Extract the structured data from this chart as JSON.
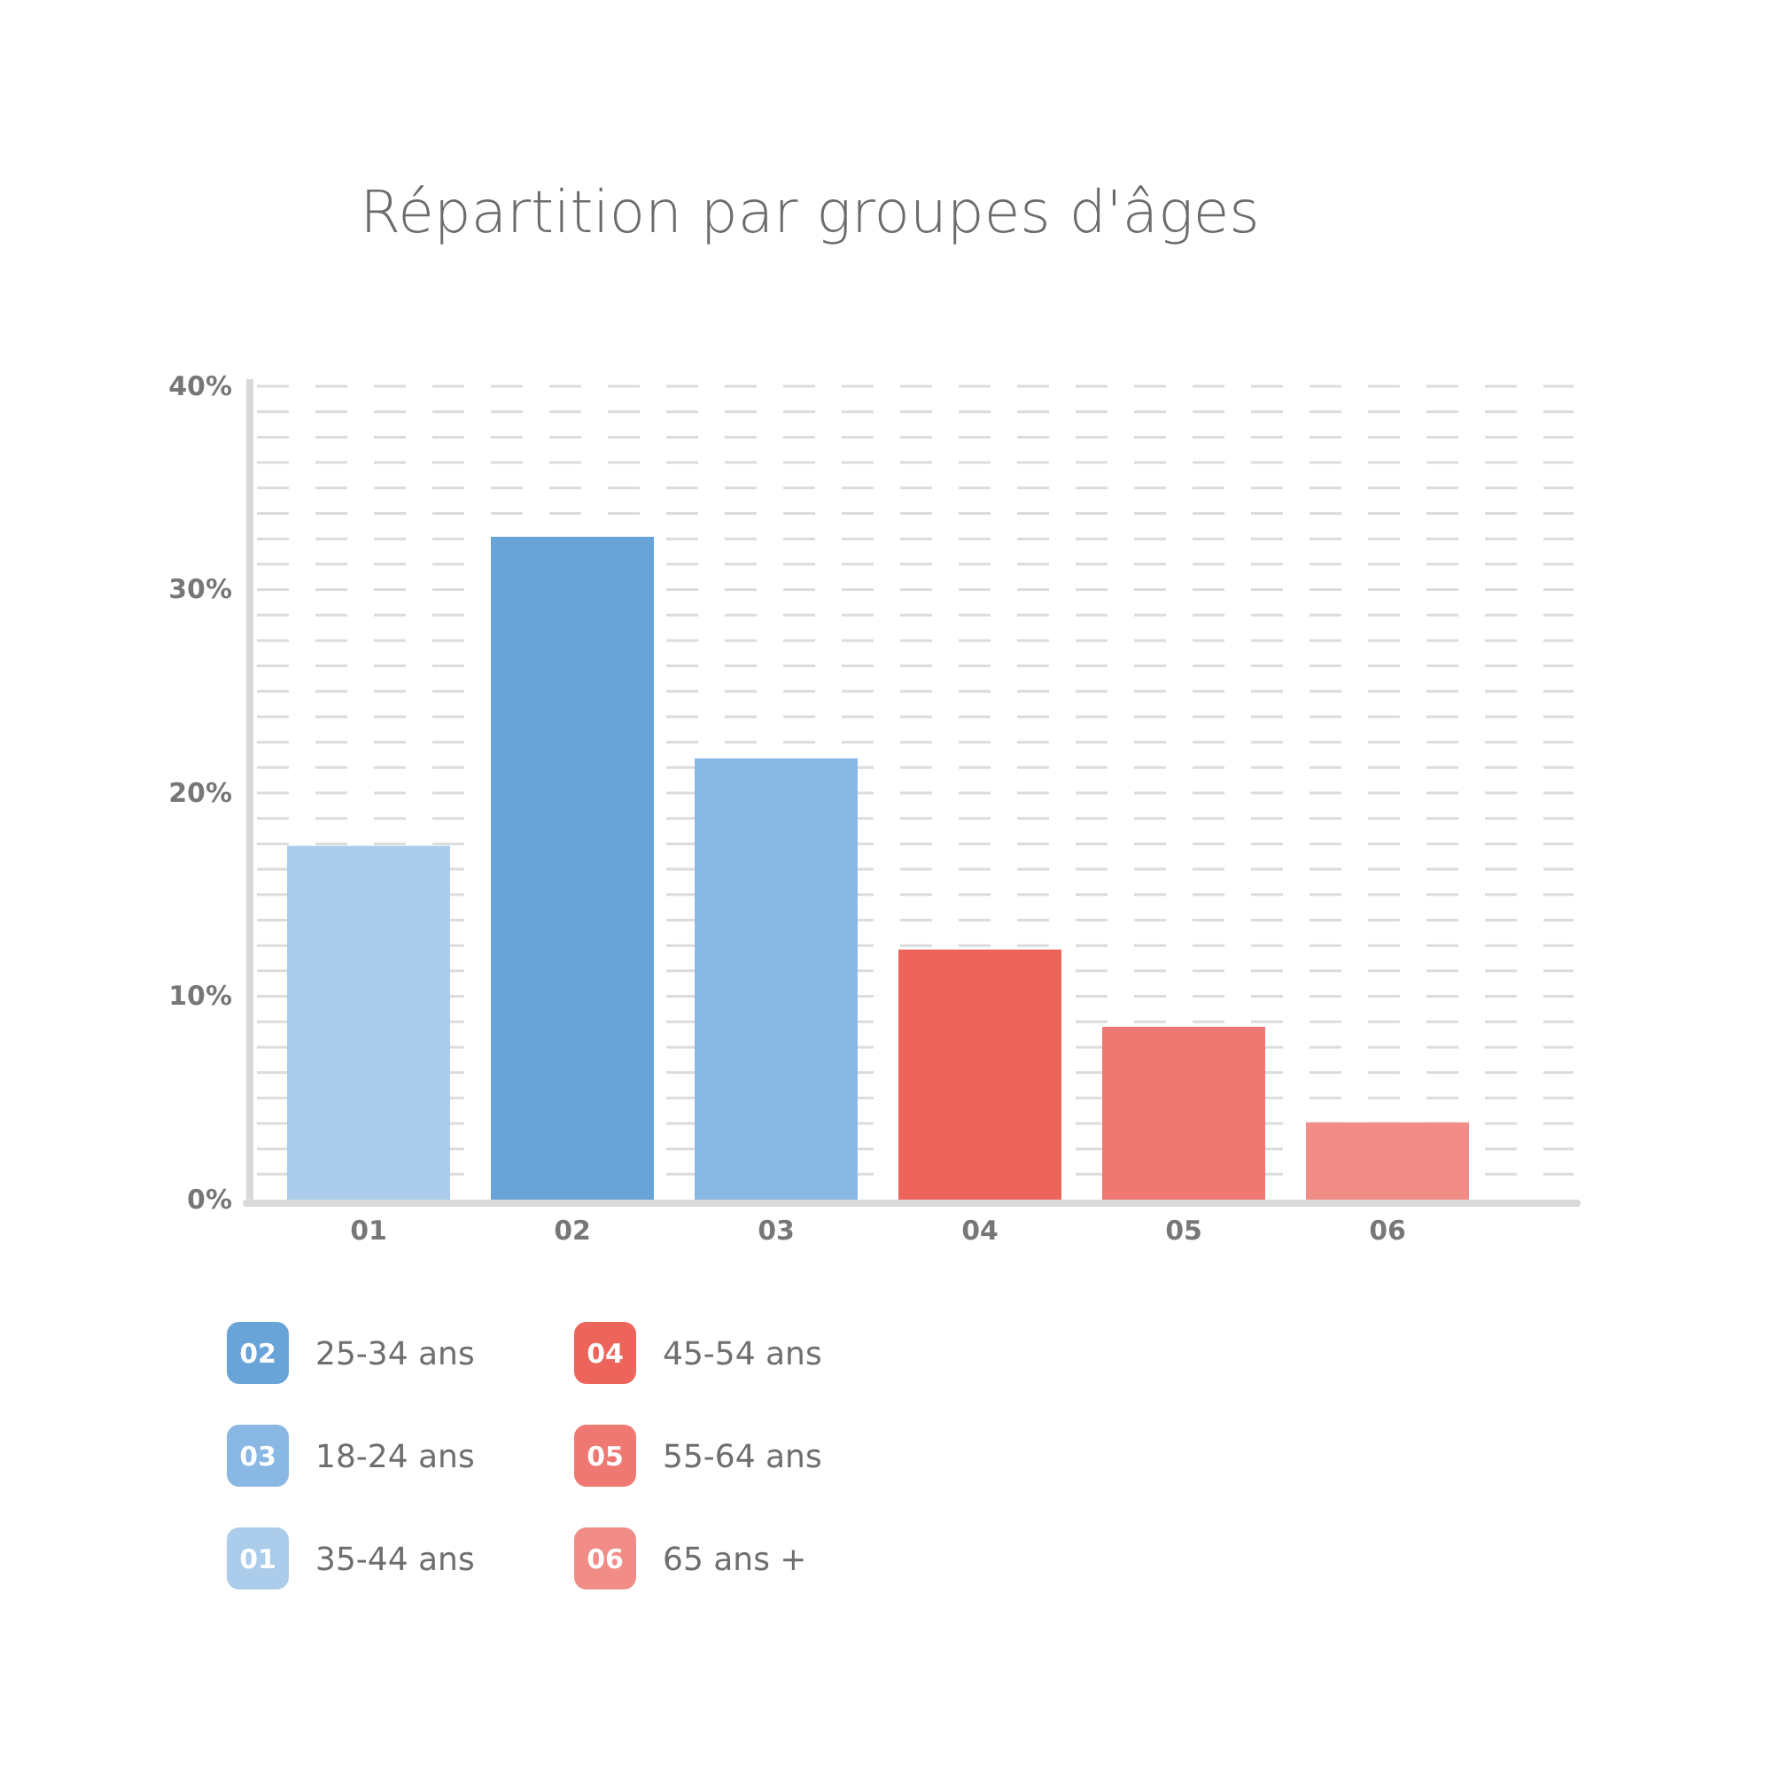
{
  "chart_data": {
    "type": "bar",
    "title": "Répartition par groupes d'âges",
    "categories": [
      "01",
      "02",
      "03",
      "04",
      "05",
      "06"
    ],
    "series": [
      {
        "name": "25-34 ans",
        "color": "#68a4d7",
        "values": [
          null,
          32.6,
          null,
          null,
          null,
          null
        ]
      },
      {
        "name": "18-24 ans",
        "color": "#88b8e3",
        "values": [
          null,
          null,
          21.7,
          null,
          null,
          null
        ]
      },
      {
        "name": "35-44 ans",
        "color": "#abcdeb",
        "values": [
          17.4,
          null,
          null,
          null,
          null,
          null
        ]
      },
      {
        "name": "45-54 ans",
        "color": "#ec645a",
        "values": [
          null,
          null,
          null,
          12.3,
          null,
          null
        ]
      },
      {
        "name": "55-64 ans",
        "color": "#ef7872",
        "values": [
          null,
          null,
          null,
          null,
          8.5,
          null
        ]
      },
      {
        "name": "65 ans +",
        "color": "#f18c86",
        "values": [
          null,
          null,
          null,
          null,
          null,
          3.8
        ]
      }
    ],
    "ylim": [
      0,
      40
    ],
    "yticks": [
      {
        "value": 0,
        "label": "0%"
      },
      {
        "value": 1.25,
        "label": null
      },
      {
        "value": 2.5,
        "label": null
      },
      {
        "value": 3.75,
        "label": null
      },
      {
        "value": 5,
        "label": null
      },
      {
        "value": 6.25,
        "label": null
      },
      {
        "value": 7.5,
        "label": null
      },
      {
        "value": 8.75,
        "label": null
      },
      {
        "value": 10,
        "label": "10%"
      },
      {
        "value": 11.25,
        "label": null
      },
      {
        "value": 12.5,
        "label": null
      },
      {
        "value": 13.75,
        "label": null
      },
      {
        "value": 15,
        "label": null
      },
      {
        "value": 16.25,
        "label": null
      },
      {
        "value": 17.5,
        "label": null
      },
      {
        "value": 18.75,
        "label": null
      },
      {
        "value": 20,
        "label": "20%"
      },
      {
        "value": 21.25,
        "label": null
      },
      {
        "value": 22.5,
        "label": null
      },
      {
        "value": 23.75,
        "label": null
      },
      {
        "value": 25,
        "label": null
      },
      {
        "value": 26.25,
        "label": null
      },
      {
        "value": 27.5,
        "label": null
      },
      {
        "value": 28.75,
        "label": null
      },
      {
        "value": 30,
        "label": "30%"
      },
      {
        "value": 31.25,
        "label": null
      },
      {
        "value": 32.5,
        "label": null
      },
      {
        "value": 33.75,
        "label": null
      },
      {
        "value": 35,
        "label": null
      },
      {
        "value": 36.25,
        "label": null
      },
      {
        "value": 37.5,
        "label": null
      },
      {
        "value": 38.75,
        "label": null
      },
      {
        "value": 40,
        "label": "40%"
      }
    ],
    "grid": "y",
    "legend": "bottom left"
  }
}
